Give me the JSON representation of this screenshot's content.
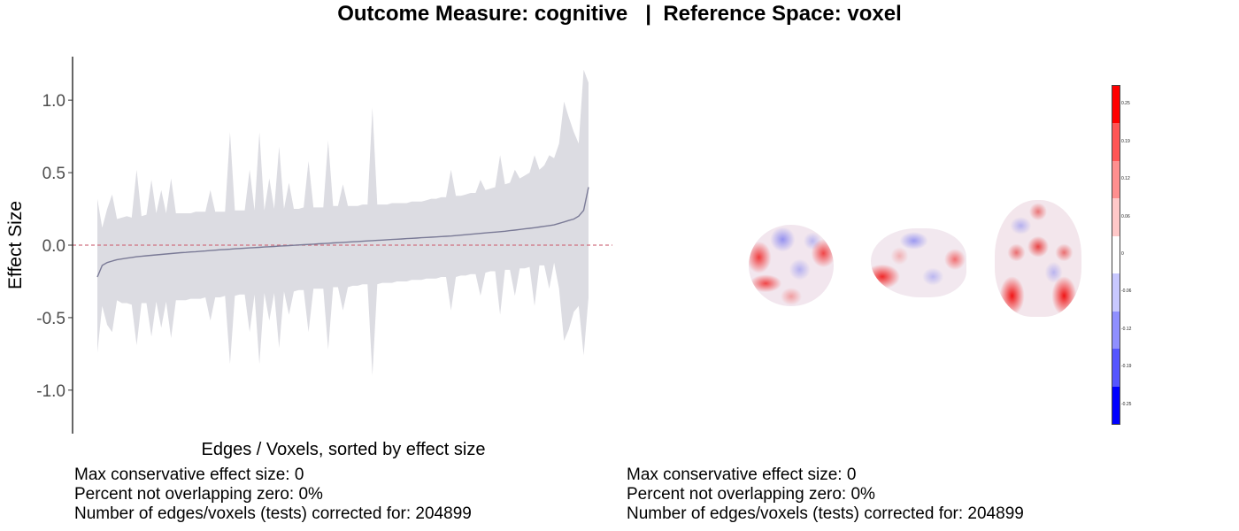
{
  "title": "Outcome Measure: cognitive   |  Reference Space: voxel",
  "chart_data": {
    "type": "area",
    "xlabel": "Edges / Voxels, sorted by effect size",
    "ylabel": "Effect Size",
    "ylim": [
      -1.3,
      1.3
    ],
    "yticks": [
      "1.0",
      "0.5",
      "0.0",
      "-0.5",
      "-1.0"
    ],
    "reference_line": 0,
    "grid": false,
    "series": [
      {
        "x": [
          0,
          1,
          2,
          3,
          4,
          5,
          6,
          7,
          8,
          9,
          10,
          11,
          12,
          13,
          14,
          15,
          16,
          17,
          18,
          19,
          20,
          21,
          22,
          23,
          24,
          25,
          26,
          27,
          28,
          29,
          30,
          31,
          32,
          33,
          34,
          35,
          36,
          37,
          38,
          39,
          40,
          41,
          42,
          43,
          44,
          45,
          46,
          47,
          48,
          49,
          50,
          51,
          52,
          53,
          54,
          55,
          56,
          57,
          58,
          59,
          60,
          61,
          62,
          63,
          64,
          65,
          66,
          67,
          68,
          69,
          70,
          71,
          72,
          73,
          74,
          75,
          76,
          77,
          78,
          79,
          80,
          81,
          82,
          83,
          84,
          85,
          86,
          87,
          88,
          89,
          90,
          91,
          92,
          93,
          94,
          95,
          96,
          97,
          98,
          99,
          100
        ],
        "estimate": [
          -0.22,
          -0.14,
          -0.12,
          -0.11,
          -0.1,
          -0.095,
          -0.09,
          -0.085,
          -0.08,
          -0.077,
          -0.073,
          -0.07,
          -0.067,
          -0.064,
          -0.061,
          -0.058,
          -0.055,
          -0.052,
          -0.05,
          -0.047,
          -0.045,
          -0.042,
          -0.04,
          -0.037,
          -0.035,
          -0.032,
          -0.03,
          -0.028,
          -0.025,
          -0.023,
          -0.021,
          -0.019,
          -0.017,
          -0.015,
          -0.013,
          -0.011,
          -0.009,
          -0.007,
          -0.005,
          -0.003,
          -0.001,
          0.001,
          0.003,
          0.005,
          0.007,
          0.009,
          0.011,
          0.013,
          0.015,
          0.017,
          0.019,
          0.021,
          0.023,
          0.025,
          0.027,
          0.029,
          0.031,
          0.033,
          0.035,
          0.037,
          0.039,
          0.041,
          0.043,
          0.045,
          0.047,
          0.049,
          0.051,
          0.053,
          0.055,
          0.057,
          0.059,
          0.061,
          0.063,
          0.066,
          0.069,
          0.072,
          0.075,
          0.078,
          0.081,
          0.084,
          0.087,
          0.09,
          0.093,
          0.096,
          0.1,
          0.104,
          0.108,
          0.112,
          0.116,
          0.12,
          0.125,
          0.13,
          0.135,
          0.14,
          0.15,
          0.16,
          0.17,
          0.18,
          0.2,
          0.24,
          0.4
        ],
        "upper": [
          0.32,
          0.12,
          0.25,
          0.35,
          0.18,
          0.19,
          0.2,
          0.19,
          0.52,
          0.2,
          0.21,
          0.45,
          0.22,
          0.38,
          0.22,
          0.46,
          0.22,
          0.22,
          0.22,
          0.22,
          0.23,
          0.23,
          0.23,
          0.38,
          0.23,
          0.23,
          0.23,
          0.78,
          0.24,
          0.24,
          0.24,
          0.52,
          0.24,
          0.78,
          0.24,
          0.46,
          0.25,
          0.68,
          0.25,
          0.43,
          0.25,
          0.25,
          0.26,
          0.58,
          0.26,
          0.26,
          0.26,
          0.72,
          0.27,
          0.27,
          0.42,
          0.27,
          0.27,
          0.27,
          0.28,
          0.28,
          0.95,
          0.28,
          0.28,
          0.28,
          0.29,
          0.29,
          0.29,
          0.29,
          0.3,
          0.3,
          0.3,
          0.31,
          0.32,
          0.32,
          0.33,
          0.33,
          0.52,
          0.34,
          0.34,
          0.35,
          0.36,
          0.36,
          0.45,
          0.38,
          0.39,
          0.4,
          0.62,
          0.42,
          0.43,
          0.52,
          0.46,
          0.48,
          0.5,
          0.62,
          0.52,
          0.55,
          0.62,
          0.6,
          0.7,
          0.99,
          0.88,
          0.78,
          0.7,
          1.21,
          1.12
        ],
        "lower": [
          -0.74,
          -0.42,
          -0.55,
          -0.6,
          -0.38,
          -0.4,
          -0.4,
          -0.41,
          -0.69,
          -0.4,
          -0.4,
          -0.63,
          -0.39,
          -0.57,
          -0.39,
          -0.64,
          -0.38,
          -0.38,
          -0.38,
          -0.37,
          -0.37,
          -0.37,
          -0.36,
          -0.52,
          -0.36,
          -0.36,
          -0.35,
          -0.82,
          -0.35,
          -0.34,
          -0.34,
          -0.6,
          -0.34,
          -0.82,
          -0.33,
          -0.52,
          -0.33,
          -0.71,
          -0.32,
          -0.48,
          -0.32,
          -0.31,
          -0.31,
          -0.6,
          -0.3,
          -0.3,
          -0.3,
          -0.72,
          -0.29,
          -0.29,
          -0.45,
          -0.29,
          -0.28,
          -0.28,
          -0.27,
          -0.27,
          -0.9,
          -0.27,
          -0.26,
          -0.26,
          -0.26,
          -0.25,
          -0.25,
          -0.25,
          -0.24,
          -0.24,
          -0.24,
          -0.23,
          -0.23,
          -0.23,
          -0.22,
          -0.22,
          -0.45,
          -0.22,
          -0.21,
          -0.21,
          -0.2,
          -0.2,
          -0.35,
          -0.19,
          -0.18,
          -0.18,
          -0.48,
          -0.17,
          -0.17,
          -0.35,
          -0.16,
          -0.16,
          -0.15,
          -0.42,
          -0.14,
          -0.14,
          -0.3,
          -0.12,
          -0.3,
          -0.66,
          -0.58,
          -0.46,
          -0.42,
          -0.76,
          -0.36
        ]
      }
    ],
    "colors": {
      "ci_fill": "#dcdce2",
      "line": "#7a7a96",
      "zero_line": "#d07080"
    }
  },
  "stats_left": [
    "Max conservative effect size: 0",
    "Percent not overlapping zero: 0%",
    "Number of edges/voxels (tests) corrected for: 204899"
  ],
  "stats_right": [
    "Max conservative effect size: 0",
    "Percent not overlapping zero: 0%",
    "Number of edges/voxels (tests) corrected for: 204899"
  ],
  "colorbar": {
    "labels": [
      "0.25",
      "0.19",
      "0.12",
      "0.06",
      "0",
      "-0.06",
      "-0.12",
      "-0.19",
      "-0.25"
    ],
    "colors": [
      "#ff0000",
      "#ff5555",
      "#ff8f8f",
      "#ffc8c8",
      "#ffffff",
      "#c8c8ff",
      "#8f8fff",
      "#5555ff",
      "#0000ff"
    ]
  }
}
